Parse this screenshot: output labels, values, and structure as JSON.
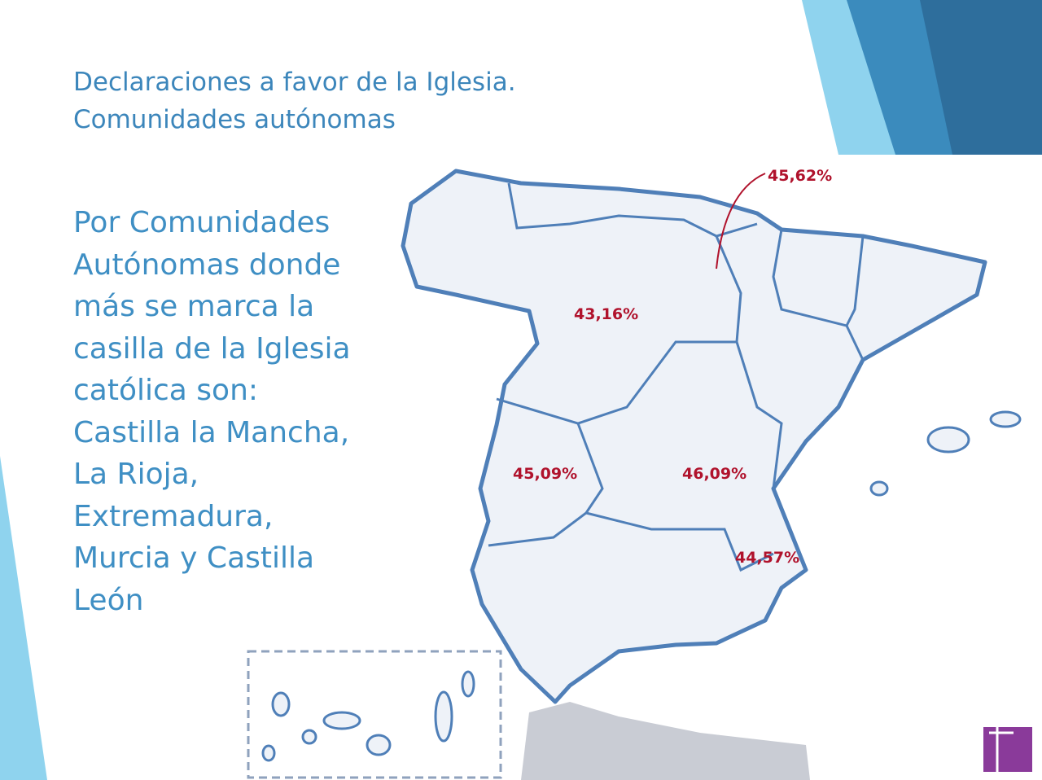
{
  "title": [
    "Declaraciones a favor de la Iglesia.",
    "Comunidades autónomas"
  ],
  "body": [
    "Por Comunidades",
    "Autónomas donde",
    "más se marca la",
    "casilla de la Iglesia",
    "católica son:",
    "Castilla la Mancha,",
    "La Rioja,",
    "Extremadura,",
    "Murcia y Castilla",
    "León"
  ],
  "map_labels": [
    "45,62%",
    "43,16%",
    "45,09%",
    "46,09%",
    "44,57%"
  ]
}
